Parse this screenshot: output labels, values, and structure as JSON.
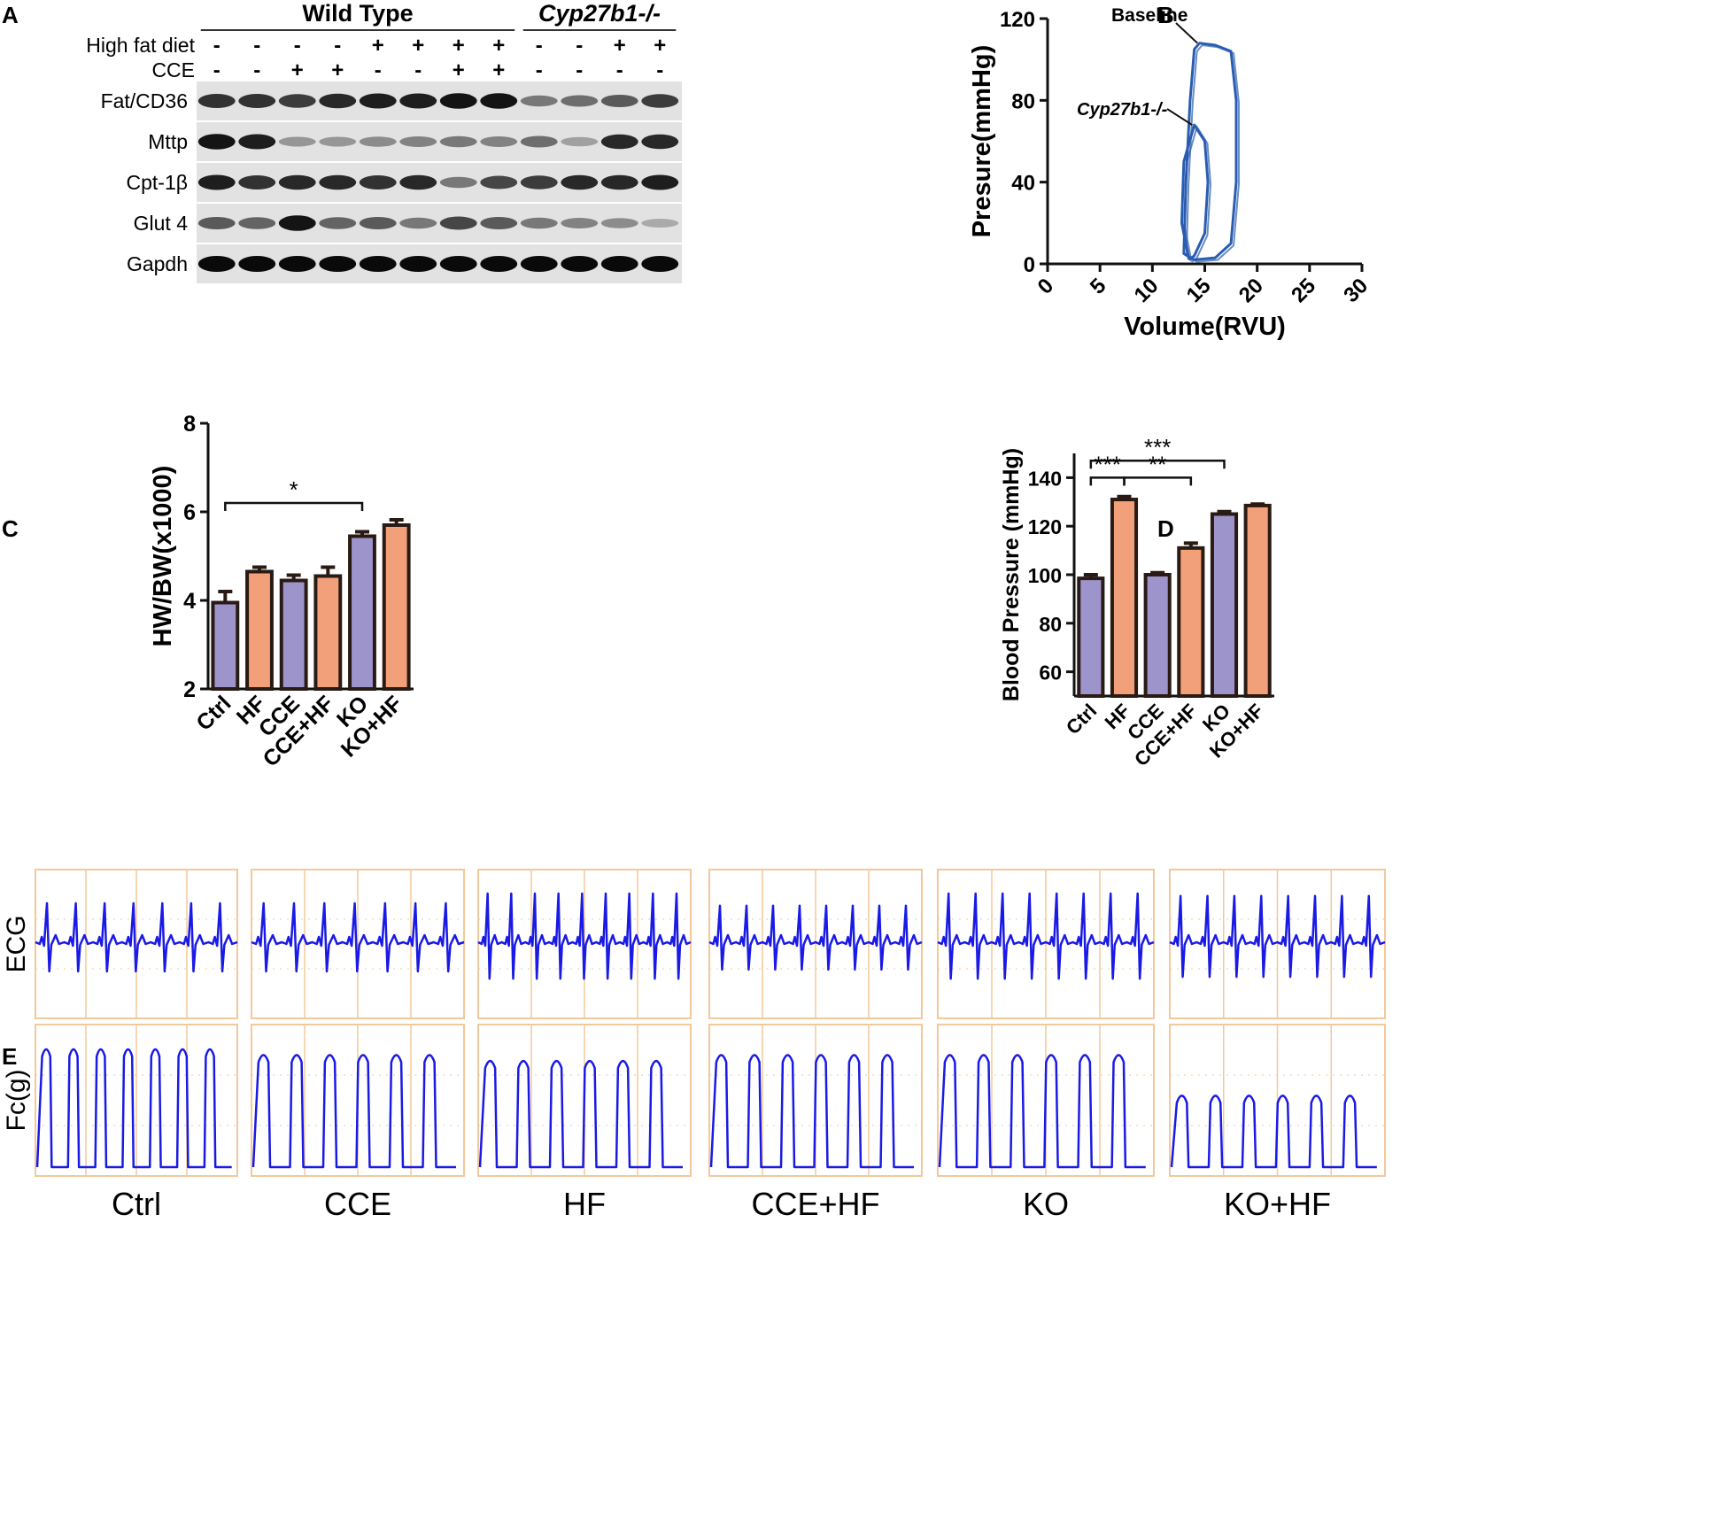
{
  "panels": {
    "A": {
      "letter": "A",
      "groups": [
        {
          "label": "Wild Type",
          "italic": false,
          "lanes": 8
        },
        {
          "label": "Cyp27b1-/-",
          "italic": true,
          "lanes": 4
        }
      ],
      "conditions": [
        {
          "label": "High fat diet",
          "signs": [
            "-",
            "-",
            "-",
            "-",
            "+",
            "+",
            "+",
            "+",
            "-",
            "-",
            "+",
            "+"
          ]
        },
        {
          "label": "CCE",
          "signs": [
            "-",
            "-",
            "+",
            "+",
            "-",
            "-",
            "+",
            "+",
            "-",
            "-",
            "-",
            "-"
          ]
        }
      ],
      "bands": [
        {
          "label": "Fat/CD36",
          "intensity": [
            0.8,
            0.8,
            0.75,
            0.85,
            0.9,
            0.9,
            0.95,
            0.95,
            0.45,
            0.5,
            0.6,
            0.75
          ]
        },
        {
          "label": "Mttp",
          "intensity": [
            0.95,
            0.9,
            0.3,
            0.3,
            0.35,
            0.4,
            0.45,
            0.4,
            0.5,
            0.25,
            0.85,
            0.85
          ]
        },
        {
          "label": "Cpt-1β",
          "intensity": [
            0.9,
            0.8,
            0.85,
            0.85,
            0.8,
            0.85,
            0.45,
            0.7,
            0.75,
            0.85,
            0.85,
            0.9
          ]
        },
        {
          "label": "Glut 4",
          "intensity": [
            0.6,
            0.55,
            0.95,
            0.55,
            0.6,
            0.45,
            0.7,
            0.6,
            0.45,
            0.4,
            0.35,
            0.2
          ]
        },
        {
          "label": "Gapdh",
          "intensity": [
            1,
            1,
            1,
            1,
            1,
            1,
            1,
            1,
            1,
            1,
            1,
            1
          ]
        }
      ]
    },
    "B": {
      "letter": "B",
      "annotations": [
        "Baseline",
        "Cyp27b1-/-"
      ],
      "chart_data": {
        "type": "line",
        "xlabel": "Volume(RVU)",
        "ylabel": "Presure(mmHg)",
        "xlim": [
          0,
          30
        ],
        "ylim": [
          0,
          120
        ],
        "xticks": [
          "0",
          "5",
          "10",
          "15",
          "20",
          "25",
          "30"
        ],
        "yticks": [
          "0",
          "40",
          "80",
          "120"
        ],
        "series": [
          {
            "name": "Baseline",
            "color": "#2a5db0",
            "points": [
              [
                14,
                2
              ],
              [
                13,
                5
              ],
              [
                13.2,
                40
              ],
              [
                13.6,
                80
              ],
              [
                14,
                105
              ],
              [
                14.5,
                108
              ],
              [
                16,
                107
              ],
              [
                17.5,
                104
              ],
              [
                18,
                80
              ],
              [
                18,
                40
              ],
              [
                17.5,
                10
              ],
              [
                16,
                3
              ],
              [
                14,
                2
              ]
            ]
          },
          {
            "name": "Cyp27b1-/-",
            "color": "#2a5db0",
            "points": [
              [
                13.5,
                2
              ],
              [
                12.8,
                20
              ],
              [
                13,
                50
              ],
              [
                14,
                68
              ],
              [
                15,
                60
              ],
              [
                15.3,
                40
              ],
              [
                15,
                15
              ],
              [
                14,
                4
              ],
              [
                13.5,
                2
              ]
            ]
          }
        ]
      }
    },
    "C": {
      "letter": "C",
      "chart_data": {
        "type": "bar",
        "categories": [
          "Ctrl",
          "HF",
          "CCE",
          "CCE+HF",
          "KO",
          "KO+HF"
        ],
        "values": [
          3.95,
          4.65,
          4.45,
          4.55,
          5.45,
          5.7
        ],
        "errors": [
          0.25,
          0.1,
          0.12,
          0.2,
          0.1,
          0.12
        ],
        "ylabel": "HW/BW(x1000)",
        "ylim": [
          2,
          8
        ],
        "yticks": [
          "2",
          "4",
          "6",
          "8"
        ],
        "significance": [
          {
            "from": 0,
            "to": 4,
            "label": "*",
            "y": 6.2
          }
        ],
        "colors": [
          "#9d94cc",
          "#f2a07a",
          "#9d94cc",
          "#f2a07a",
          "#9d94cc",
          "#f2a07a"
        ]
      }
    },
    "D": {
      "letter": "D",
      "chart_data": {
        "type": "bar",
        "categories": [
          "Ctrl",
          "HF",
          "CCE",
          "CCE+HF",
          "KO",
          "KO+HF"
        ],
        "values": [
          98.5,
          131,
          100,
          111,
          125,
          128.5
        ],
        "errors": [
          1.5,
          1.2,
          0.8,
          2,
          1,
          0.6
        ],
        "ylabel": "Blood Pressure (mmHg)",
        "ylim": [
          50,
          150
        ],
        "yticks": [
          "60",
          "80",
          "100",
          "120",
          "140"
        ],
        "significance": [
          {
            "from": 0,
            "to": 4,
            "label": "***",
            "y": 147
          },
          {
            "from": 0,
            "to": 1,
            "label": "***",
            "y": 140
          },
          {
            "from": 1,
            "to": 3,
            "label": "**",
            "y": 140
          }
        ],
        "colors": [
          "#9d94cc",
          "#f2a07a",
          "#9d94cc",
          "#f2a07a",
          "#9d94cc",
          "#f2a07a"
        ]
      }
    },
    "E": {
      "letter": "E",
      "row_labels": [
        "ECG",
        "Fc(g)"
      ],
      "traces": [
        {
          "label": "Ctrl",
          "ecg_amp": 0.8,
          "ecg_beats": 7,
          "fc_amp": 1.0,
          "fc_beats": 7
        },
        {
          "label": "CCE",
          "ecg_amp": 0.8,
          "ecg_beats": 7,
          "fc_amp": 0.95,
          "fc_beats": 6
        },
        {
          "label": "HF",
          "ecg_amp": 1.0,
          "ecg_beats": 9,
          "fc_amp": 0.9,
          "fc_beats": 6
        },
        {
          "label": "CCE+HF",
          "ecg_amp": 0.75,
          "ecg_beats": 8,
          "fc_amp": 0.95,
          "fc_beats": 6
        },
        {
          "label": "KO",
          "ecg_amp": 1.0,
          "ecg_beats": 8,
          "fc_amp": 0.95,
          "fc_beats": 6
        },
        {
          "label": "KO+HF",
          "ecg_amp": 0.95,
          "ecg_beats": 8,
          "fc_amp": 0.6,
          "fc_beats": 6
        }
      ]
    }
  }
}
